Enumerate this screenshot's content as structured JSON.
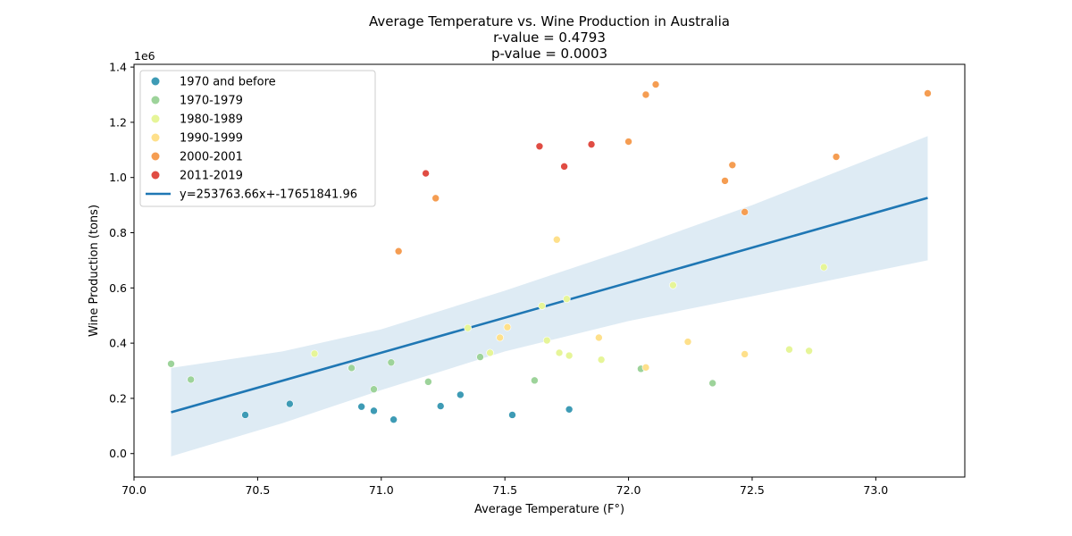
{
  "chart_data": {
    "type": "scatter",
    "title_lines": [
      "Average Temperature vs. Wine Production in Australia",
      "r-value = 0.4793",
      "p-value = 0.0003"
    ],
    "xlabel": "Average Temperature (F°)",
    "ylabel": "Wine Production (tons)",
    "y_offset_label": "1e6",
    "xlim": [
      70.0,
      73.36
    ],
    "ylim": [
      -0.085,
      1.41
    ],
    "x_ticks": [
      70.0,
      70.5,
      71.0,
      71.5,
      72.0,
      72.5,
      73.0
    ],
    "x_tick_labels": [
      "70.0",
      "70.5",
      "71.0",
      "71.5",
      "72.0",
      "72.5",
      "73.0"
    ],
    "y_ticks": [
      0.0,
      0.2,
      0.4,
      0.6,
      0.8,
      1.0,
      1.2,
      1.4
    ],
    "y_tick_labels": [
      "0.0",
      "0.2",
      "0.4",
      "0.6",
      "0.8",
      "1.0",
      "1.2",
      "1.4"
    ],
    "legend_position": "upper-left",
    "series": [
      {
        "name": "1970 and before",
        "color": "#3e9bb5",
        "points": [
          [
            70.45,
            0.14
          ],
          [
            70.63,
            0.18
          ],
          [
            70.92,
            0.17
          ],
          [
            70.97,
            0.155
          ],
          [
            71.05,
            0.123
          ],
          [
            71.24,
            0.172
          ],
          [
            71.32,
            0.213
          ],
          [
            71.53,
            0.14
          ],
          [
            71.76,
            0.16
          ]
        ]
      },
      {
        "name": "1970-1979",
        "color": "#9dd39a",
        "points": [
          [
            70.15,
            0.325
          ],
          [
            70.23,
            0.268
          ],
          [
            70.88,
            0.31
          ],
          [
            70.97,
            0.233
          ],
          [
            71.04,
            0.33
          ],
          [
            71.19,
            0.26
          ],
          [
            71.4,
            0.35
          ],
          [
            71.62,
            0.265
          ],
          [
            72.05,
            0.307
          ],
          [
            72.34,
            0.255
          ]
        ]
      },
      {
        "name": "1980-1989",
        "color": "#e6f598",
        "points": [
          [
            70.73,
            0.362
          ],
          [
            71.35,
            0.455
          ],
          [
            71.44,
            0.365
          ],
          [
            71.65,
            0.535
          ],
          [
            71.75,
            0.56
          ],
          [
            71.67,
            0.41
          ],
          [
            71.72,
            0.365
          ],
          [
            71.76,
            0.355
          ],
          [
            71.89,
            0.34
          ],
          [
            72.18,
            0.61
          ],
          [
            72.65,
            0.377
          ],
          [
            72.73,
            0.372
          ],
          [
            72.79,
            0.675
          ]
        ]
      },
      {
        "name": "1990-1999",
        "color": "#fee08b",
        "points": [
          [
            71.48,
            0.42
          ],
          [
            71.51,
            0.458
          ],
          [
            71.71,
            0.775
          ],
          [
            71.88,
            0.42
          ],
          [
            72.07,
            0.312
          ],
          [
            72.24,
            0.405
          ],
          [
            72.47,
            0.36
          ]
        ]
      },
      {
        "name": "2000-2001",
        "color": "#f59d52",
        "points": [
          [
            71.07,
            0.733
          ],
          [
            71.22,
            0.925
          ],
          [
            72.0,
            1.13
          ],
          [
            72.07,
            1.3
          ],
          [
            72.11,
            1.337
          ],
          [
            72.39,
            0.988
          ],
          [
            72.42,
            1.045
          ],
          [
            72.47,
            0.875
          ],
          [
            72.84,
            1.075
          ],
          [
            73.21,
            1.305
          ]
        ]
      },
      {
        "name": "2011-2019",
        "color": "#e04c43",
        "points": [
          [
            71.18,
            1.015
          ],
          [
            71.64,
            1.113
          ],
          [
            71.74,
            1.04
          ],
          [
            71.85,
            1.12
          ]
        ]
      }
    ],
    "fit_line": {
      "name": "y=253763.66x+-17651841.96",
      "color": "#1f77b4",
      "slope_millions": 0.25376366,
      "intercept_millions": -17.65184196,
      "x_range": [
        70.15,
        73.21
      ]
    },
    "confidence_band": {
      "color": "#1f77b4",
      "upper": [
        [
          70.15,
          0.31
        ],
        [
          70.6,
          0.37
        ],
        [
          71.0,
          0.45
        ],
        [
          71.5,
          0.59
        ],
        [
          72.0,
          0.74
        ],
        [
          72.5,
          0.9
        ],
        [
          73.21,
          1.15
        ]
      ],
      "lower": [
        [
          70.15,
          -0.01
        ],
        [
          70.6,
          0.11
        ],
        [
          71.0,
          0.23
        ],
        [
          71.5,
          0.37
        ],
        [
          72.0,
          0.48
        ],
        [
          72.5,
          0.57
        ],
        [
          73.21,
          0.7
        ]
      ]
    }
  }
}
